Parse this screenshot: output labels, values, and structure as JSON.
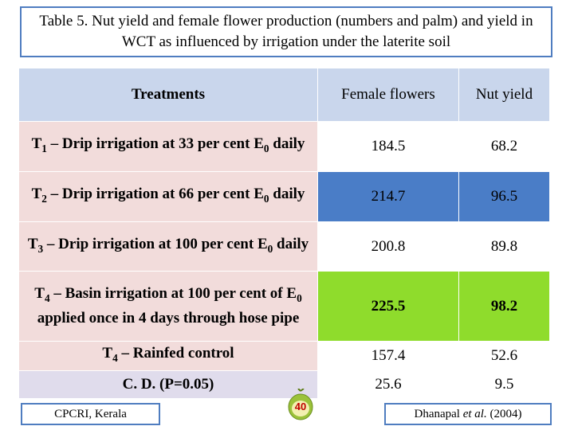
{
  "title": "Table 5.  Nut yield and female flower production (numbers and palm) and yield in WCT as influenced by irrigation under the laterite soil",
  "table": {
    "header": [
      "Treatments",
      "Female flowers",
      "Nut yield"
    ],
    "rows": [
      {
        "treatment": [
          "T",
          {
            "sub": "1"
          },
          " – Drip irrigation at 33 per cent E",
          {
            "sub": "0"
          },
          " daily"
        ],
        "female_flowers": 184.5,
        "nut_yield": 68.2
      },
      {
        "treatment": [
          "T",
          {
            "sub": "2"
          },
          " – Drip irrigation at 66 per cent E",
          {
            "sub": "0"
          },
          " daily"
        ],
        "female_flowers": 214.7,
        "nut_yield": 96.5
      },
      {
        "treatment": [
          "T",
          {
            "sub": "3"
          },
          " – Drip irrigation at 100 per cent E",
          {
            "sub": "0"
          },
          " daily"
        ],
        "female_flowers": 200.8,
        "nut_yield": 89.8
      },
      {
        "treatment": [
          "T",
          {
            "sub": "4"
          },
          " – Basin irrigation at 100 per cent of E",
          {
            "sub": "0"
          },
          "  applied  once in 4 days through hose pipe"
        ],
        "female_flowers": 225.5,
        "nut_yield": 98.2
      },
      {
        "treatment": [
          "T",
          {
            "sub": "4"
          },
          " – Rainfed control"
        ],
        "female_flowers": 157.4,
        "nut_yield": 52.6
      },
      {
        "treatment": [
          "C. D. (P=0.05)"
        ],
        "female_flowers": 25.6,
        "nut_yield": 9.5
      }
    ]
  },
  "footer": {
    "left": "CPCRI, Kerala",
    "page": "40",
    "right": [
      "Dhanapal ",
      {
        "italic": "et al."
      },
      " (2004)"
    ]
  }
}
